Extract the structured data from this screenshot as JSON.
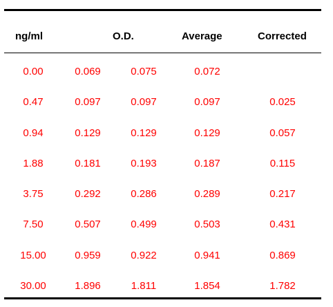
{
  "table": {
    "headers": {
      "concentration": "ng/ml",
      "od": "O.D.",
      "average": "Average",
      "corrected": "Corrected"
    },
    "rows": [
      {
        "conc": "0.00",
        "od1": "0.069",
        "od2": "0.075",
        "avg": "0.072",
        "cor": ""
      },
      {
        "conc": "0.47",
        "od1": "0.097",
        "od2": "0.097",
        "avg": "0.097",
        "cor": "0.025"
      },
      {
        "conc": "0.94",
        "od1": "0.129",
        "od2": "0.129",
        "avg": "0.129",
        "cor": "0.057"
      },
      {
        "conc": "1.88",
        "od1": "0.181",
        "od2": "0.193",
        "avg": "0.187",
        "cor": "0.115"
      },
      {
        "conc": "3.75",
        "od1": "0.292",
        "od2": "0.286",
        "avg": "0.289",
        "cor": "0.217"
      },
      {
        "conc": "7.50",
        "od1": "0.507",
        "od2": "0.499",
        "avg": "0.503",
        "cor": "0.431"
      },
      {
        "conc": "15.00",
        "od1": "0.959",
        "od2": "0.922",
        "avg": "0.941",
        "cor": "0.869"
      },
      {
        "conc": "30.00",
        "od1": "1.896",
        "od2": "1.811",
        "avg": "1.854",
        "cor": "1.782"
      }
    ]
  },
  "colors": {
    "data_text": "#ff0000",
    "header_text": "#000000",
    "rules": "#000000"
  }
}
